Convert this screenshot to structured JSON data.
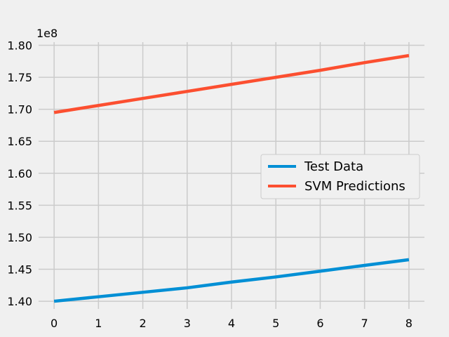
{
  "chart_data": {
    "type": "line",
    "title": "",
    "xlabel": "",
    "ylabel": "",
    "y_scale_label": "1e8",
    "x": [
      0,
      1,
      2,
      3,
      4,
      5,
      6,
      7,
      8
    ],
    "x_ticks": [
      "0",
      "1",
      "2",
      "3",
      "4",
      "5",
      "6",
      "7",
      "8"
    ],
    "y_ticks": [
      "1.40",
      "1.45",
      "1.50",
      "1.55",
      "1.60",
      "1.65",
      "1.70",
      "1.75",
      "1.80"
    ],
    "y_tick_values": [
      1.4,
      1.45,
      1.5,
      1.55,
      1.6,
      1.65,
      1.7,
      1.75,
      1.8
    ],
    "xlim": [
      -0.35,
      8.35
    ],
    "ylim": [
      1.388,
      1.805
    ],
    "grid": true,
    "legend_position": "center-right",
    "series": [
      {
        "name": "Test Data",
        "color": "#008fd5",
        "values": [
          1.4,
          1.407,
          1.414,
          1.421,
          1.43,
          1.438,
          1.447,
          1.456,
          1.465
        ]
      },
      {
        "name": "SVM Predictions",
        "color": "#fc4f30",
        "values": [
          1.695,
          1.706,
          1.717,
          1.728,
          1.739,
          1.75,
          1.761,
          1.773,
          1.784
        ]
      }
    ]
  }
}
